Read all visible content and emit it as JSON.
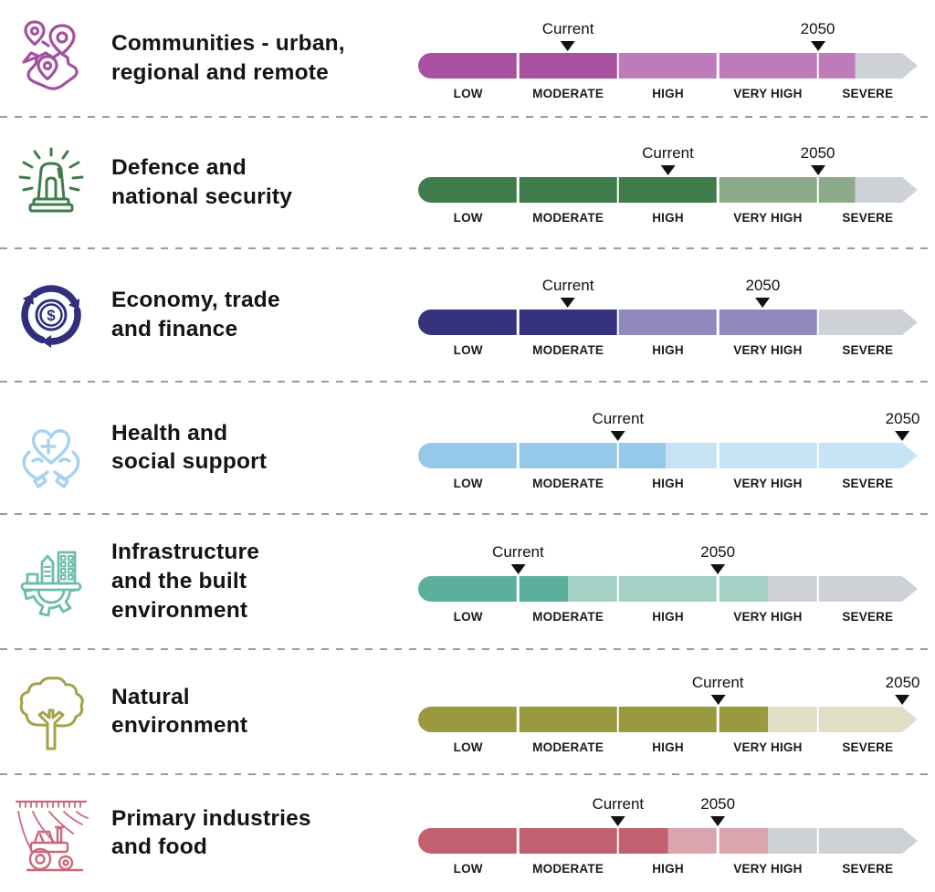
{
  "separator_color": "#9A9A9A",
  "chart_data": {
    "type": "table",
    "title": "Current and 2050 risk ratings by sector",
    "scale_categories": [
      "LOW",
      "MODERATE",
      "HIGH",
      "VERY HIGH",
      "SEVERE"
    ],
    "marker_labels": {
      "current": "Current",
      "future": "2050"
    },
    "rows": [
      {
        "sector_lines": [
          "Communities - urban,",
          "regional and remote"
        ],
        "icon": "map-pins-icon",
        "icon_color": "#A4509F",
        "colors": {
          "dark": "#A8519F",
          "light": "#BD7CB9",
          "rest": "#CED1D5"
        },
        "dark_end_pct": 40,
        "light_end_pct": 87.5,
        "current_pct": 30,
        "future_pct": 80,
        "current_rating": "MODERATE",
        "future_rating": "VERY HIGH / SEVERE boundary"
      },
      {
        "sector_lines": [
          "Defence and",
          "national security"
        ],
        "icon": "siren-icon",
        "icon_color": "#3E7D4A",
        "colors": {
          "dark": "#407C4B",
          "light": "#8CAA8A",
          "rest": "#CED1D5"
        },
        "dark_end_pct": 60,
        "light_end_pct": 87.5,
        "current_pct": 50,
        "future_pct": 80,
        "current_rating": "HIGH",
        "future_rating": "VERY HIGH / SEVERE boundary"
      },
      {
        "sector_lines": [
          "Economy, trade",
          "and finance"
        ],
        "icon": "economy-icon",
        "icon_color": "#322E7C",
        "colors": {
          "dark": "#37327D",
          "light": "#908ABC",
          "rest": "#CED1D5"
        },
        "dark_end_pct": 40,
        "light_end_pct": 80,
        "current_pct": 30,
        "future_pct": 69,
        "current_rating": "MODERATE",
        "future_rating": "VERY HIGH"
      },
      {
        "sector_lines": [
          "Health and",
          "social support"
        ],
        "icon": "health-icon",
        "icon_color": "#A6D2F0",
        "colors": {
          "dark": "#96C8EA",
          "light": "#C8E3F6",
          "rest": "#C8E3F6"
        },
        "dark_end_pct": 49.5,
        "light_end_pct": 100,
        "current_pct": 40,
        "future_pct": 97,
        "current_rating": "MODERATE / HIGH boundary",
        "future_rating": "SEVERE"
      },
      {
        "sector_lines": [
          "Infrastructure",
          "and the built",
          "environment"
        ],
        "icon": "infrastructure-icon",
        "icon_color": "#6DBDAA",
        "colors": {
          "dark": "#5BB09C",
          "light": "#A5D0C5",
          "rest": "#CED1D5"
        },
        "dark_end_pct": 30,
        "light_end_pct": 70,
        "current_pct": 20,
        "future_pct": 60,
        "current_rating": "LOW / MODERATE boundary",
        "future_rating": "HIGH / VERY HIGH boundary"
      },
      {
        "sector_lines": [
          "Natural",
          "environment"
        ],
        "icon": "tree-icon",
        "icon_color": "#A4A24B",
        "colors": {
          "dark": "#9A993F",
          "light": "#E0DFC6",
          "rest": "#E0DFC6"
        },
        "dark_end_pct": 70,
        "light_end_pct": 100,
        "current_pct": 60,
        "future_pct": 97,
        "current_rating": "HIGH / VERY HIGH boundary",
        "future_rating": "SEVERE"
      },
      {
        "sector_lines": [
          "Primary industries",
          "and food"
        ],
        "icon": "tractor-icon",
        "icon_color": "#C9687A",
        "colors": {
          "dark": "#C2606F",
          "light": "#DAA5AE",
          "rest": "#CED1D5"
        },
        "dark_end_pct": 50,
        "light_end_pct": 70,
        "current_pct": 40,
        "future_pct": 60,
        "current_rating": "MODERATE / HIGH boundary",
        "future_rating": "HIGH / VERY HIGH boundary"
      }
    ]
  }
}
